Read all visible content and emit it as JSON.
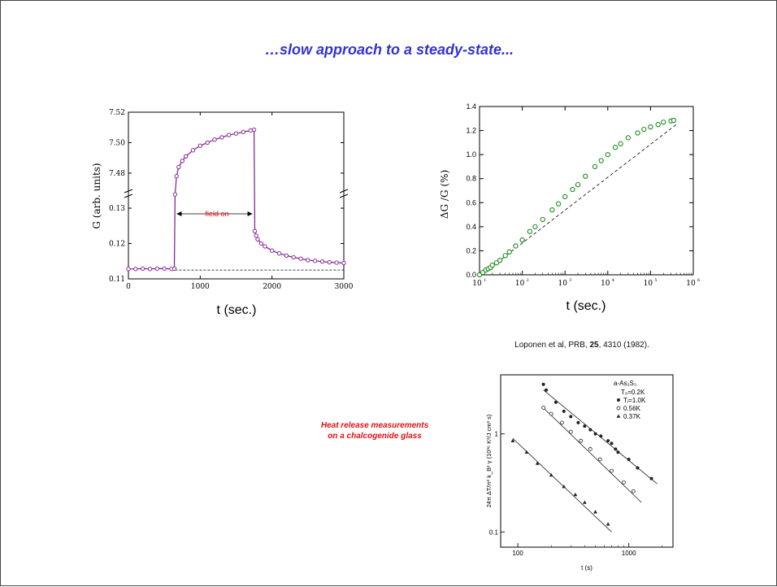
{
  "slide": {
    "title": "…slow approach to a steady-state...",
    "citation": {
      "authors": "Loponen et al, PRB, ",
      "volume": "25",
      "pages": ", 4310 (1982)."
    },
    "note": {
      "line1": "Heat release measurements",
      "line2": "on a  chalcogenide glass"
    }
  },
  "chart_data": [
    {
      "type": "scatter",
      "xlabel": "t (sec.)",
      "ylabel": "G (arb. units)",
      "xlim": [
        0,
        3000
      ],
      "x_ticks": [
        0,
        1000,
        2000,
        3000
      ],
      "y_upper": {
        "range": [
          7.465,
          7.52
        ],
        "ticks": [
          7.48,
          7.5,
          7.52
        ]
      },
      "y_lower": {
        "range": [
          0.11,
          0.133
        ],
        "ticks": [
          0.11,
          0.12,
          0.13
        ]
      },
      "annotation": "field on",
      "annotation_range": [
        650,
        1750
      ],
      "baseline": 0.1125,
      "series": [
        {
          "segment": "before",
          "points": [
            [
              0,
              0.1128
            ],
            [
              100,
              0.1128
            ],
            [
              200,
              0.1129
            ],
            [
              300,
              0.1128
            ],
            [
              400,
              0.1129
            ],
            [
              500,
              0.1129
            ],
            [
              600,
              0.1128
            ],
            [
              640,
              0.1129
            ]
          ]
        },
        {
          "segment": "field-on",
          "points": [
            [
              650,
              7.466
            ],
            [
              670,
              7.478
            ],
            [
              700,
              7.484
            ],
            [
              750,
              7.488
            ],
            [
              800,
              7.491
            ],
            [
              900,
              7.495
            ],
            [
              1000,
              7.498
            ],
            [
              1100,
              7.5
            ],
            [
              1200,
              7.502
            ],
            [
              1300,
              7.5035
            ],
            [
              1400,
              7.505
            ],
            [
              1500,
              7.506
            ],
            [
              1600,
              7.507
            ],
            [
              1700,
              7.508
            ],
            [
              1750,
              7.5085
            ]
          ]
        },
        {
          "segment": "field-off",
          "points": [
            [
              1760,
              0.1235
            ],
            [
              1780,
              0.1222
            ],
            [
              1800,
              0.1212
            ],
            [
              1850,
              0.12
            ],
            [
              1900,
              0.1192
            ],
            [
              2000,
              0.118
            ],
            [
              2100,
              0.1172
            ],
            [
              2200,
              0.1166
            ],
            [
              2300,
              0.1161
            ],
            [
              2400,
              0.1157
            ],
            [
              2500,
              0.1153
            ],
            [
              2600,
              0.1151
            ],
            [
              2700,
              0.1149
            ],
            [
              2800,
              0.1147
            ],
            [
              2900,
              0.1146
            ],
            [
              3000,
              0.1145
            ]
          ]
        }
      ]
    },
    {
      "type": "scatter",
      "xlabel": "t (sec.)",
      "ylabel": "ΔG /G (%)",
      "xscale": "log",
      "xlim": [
        10,
        1000000
      ],
      "x_ticks": [
        {
          "base": "10",
          "exp": "1"
        },
        {
          "base": "10",
          "exp": "2"
        },
        {
          "base": "10",
          "exp": "3"
        },
        {
          "base": "10",
          "exp": "4"
        },
        {
          "base": "10",
          "exp": "5"
        },
        {
          "base": "10",
          "exp": "6"
        }
      ],
      "ylim": [
        0,
        1.4
      ],
      "y_ticks": [
        "0.0",
        "0.2",
        "0.4",
        "0.6",
        "0.8",
        "1.0",
        "1.2",
        "1.4"
      ],
      "fit_line": [
        [
          10,
          -0.01
        ],
        [
          400000,
          1.25
        ]
      ],
      "points": [
        [
          10,
          0.0
        ],
        [
          12,
          0.02
        ],
        [
          14,
          0.04
        ],
        [
          16,
          0.05
        ],
        [
          18,
          0.06
        ],
        [
          20,
          0.08
        ],
        [
          25,
          0.1
        ],
        [
          30,
          0.12
        ],
        [
          40,
          0.16
        ],
        [
          50,
          0.19
        ],
        [
          70,
          0.24
        ],
        [
          100,
          0.29
        ],
        [
          150,
          0.36
        ],
        [
          200,
          0.4
        ],
        [
          300,
          0.46
        ],
        [
          500,
          0.54
        ],
        [
          700,
          0.59
        ],
        [
          1000,
          0.65
        ],
        [
          1500,
          0.71
        ],
        [
          2000,
          0.75
        ],
        [
          3000,
          0.82
        ],
        [
          5000,
          0.9
        ],
        [
          7000,
          0.95
        ],
        [
          10000,
          1.0
        ],
        [
          15000,
          1.06
        ],
        [
          20000,
          1.09
        ],
        [
          30000,
          1.14
        ],
        [
          50000,
          1.18
        ],
        [
          70000,
          1.21
        ],
        [
          100000,
          1.23
        ],
        [
          150000,
          1.25
        ],
        [
          200000,
          1.27
        ],
        [
          300000,
          1.28
        ],
        [
          350000,
          1.285
        ]
      ]
    },
    {
      "type": "scatter",
      "xlabel": "t (s)",
      "ylabel": "24π ΔT/π² k_B² γ (10³⁶ K²/J cm³ s)",
      "xscale": "log",
      "yscale": "log",
      "xlim": [
        70,
        2500
      ],
      "x_ticks": [
        "100",
        "1000"
      ],
      "ylim": [
        0.07,
        4
      ],
      "y_ticks": [
        "1",
        "0.1"
      ],
      "legend": {
        "material": "a-As₂S₃",
        "t0": "T₀=0.2K",
        "entries": [
          {
            "label": "Tᵢ=1.0K",
            "marker": "filled-circle"
          },
          {
            "label": "0.56K",
            "marker": "open-circle"
          },
          {
            "label": "0.37K",
            "marker": "triangle"
          }
        ]
      },
      "series": [
        {
          "name": "Tᵢ=1.0K",
          "marker": "filled-circle",
          "fit": [
            [
              170,
              2.8
            ],
            [
              1800,
              0.31
            ]
          ],
          "points": [
            [
              170,
              3.2
            ],
            [
              180,
              2.8
            ],
            [
              220,
              2.1
            ],
            [
              260,
              1.7
            ],
            [
              300,
              1.5
            ],
            [
              350,
              1.3
            ],
            [
              400,
              1.2
            ],
            [
              450,
              1.1
            ],
            [
              500,
              1.0
            ],
            [
              560,
              0.95
            ],
            [
              650,
              0.85
            ],
            [
              700,
              0.8
            ],
            [
              760,
              0.7
            ],
            [
              800,
              0.65
            ],
            [
              1000,
              0.55
            ],
            [
              1200,
              0.45
            ],
            [
              1600,
              0.35
            ]
          ]
        },
        {
          "name": "0.56K",
          "marker": "open-circle",
          "fit": [
            [
              165,
              1.9
            ],
            [
              1300,
              0.2
            ]
          ],
          "points": [
            [
              170,
              1.85
            ],
            [
              200,
              1.6
            ],
            [
              250,
              1.3
            ],
            [
              300,
              1.05
            ],
            [
              370,
              0.85
            ],
            [
              450,
              0.7
            ],
            [
              550,
              0.55
            ],
            [
              700,
              0.42
            ],
            [
              900,
              0.32
            ],
            [
              1100,
              0.26
            ]
          ]
        },
        {
          "name": "0.37K",
          "marker": "triangle",
          "fit": [
            [
              90,
              0.9
            ],
            [
              700,
              0.1
            ]
          ],
          "points": [
            [
              90,
              0.85
            ],
            [
              120,
              0.65
            ],
            [
              150,
              0.5
            ],
            [
              200,
              0.38
            ],
            [
              260,
              0.29
            ],
            [
              330,
              0.24
            ],
            [
              400,
              0.2
            ],
            [
              500,
              0.16
            ],
            [
              650,
              0.12
            ]
          ]
        }
      ]
    }
  ]
}
